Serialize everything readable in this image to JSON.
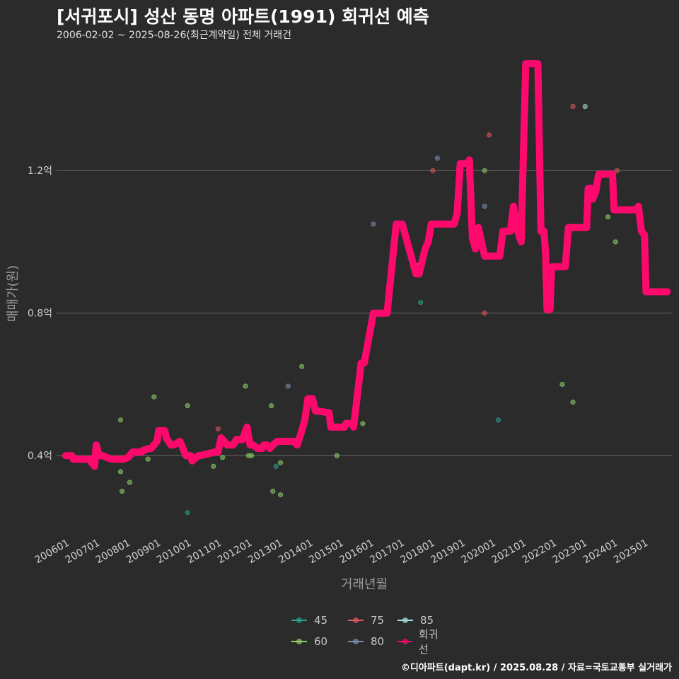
{
  "title": "[서귀포시] 성산 동명 아파트(1991) 회귀선 예측",
  "subtitle": "2006-02-02 ~ 2025-08-26(최근계약일) 전체 거래건",
  "caption": "©디아파트(dapt.kr) / 2025.08.28 / 자료=국토교통부 실거래가",
  "chart_data": {
    "type": "line",
    "xlabel": "거래년월",
    "ylabel": "매매가(원)",
    "x_range": [
      2005.7,
      2025.9
    ],
    "y_range": [
      0.17,
      1.54
    ],
    "x_ticks": [
      {
        "x": 2006.0,
        "label": "200601"
      },
      {
        "x": 2007.0,
        "label": "200701"
      },
      {
        "x": 2008.0,
        "label": "200801"
      },
      {
        "x": 2009.0,
        "label": "200901"
      },
      {
        "x": 2010.0,
        "label": "201001"
      },
      {
        "x": 2011.0,
        "label": "201101"
      },
      {
        "x": 2012.0,
        "label": "201201"
      },
      {
        "x": 2013.0,
        "label": "201301"
      },
      {
        "x": 2014.0,
        "label": "201401"
      },
      {
        "x": 2015.0,
        "label": "201501"
      },
      {
        "x": 2016.0,
        "label": "201601"
      },
      {
        "x": 2017.0,
        "label": "201701"
      },
      {
        "x": 2018.0,
        "label": "201801"
      },
      {
        "x": 2019.0,
        "label": "201901"
      },
      {
        "x": 2020.0,
        "label": "202001"
      },
      {
        "x": 2021.0,
        "label": "202101"
      },
      {
        "x": 2022.0,
        "label": "202201"
      },
      {
        "x": 2023.0,
        "label": "202301"
      },
      {
        "x": 2024.0,
        "label": "202401"
      },
      {
        "x": 2025.0,
        "label": "202501"
      }
    ],
    "y_ticks": [
      {
        "y": 0.4,
        "label": "0.4억"
      },
      {
        "y": 0.8,
        "label": "0.8억"
      },
      {
        "y": 1.2,
        "label": "1.2억"
      }
    ],
    "grid": true,
    "legend_position": "bottom",
    "legend": [
      {
        "name": "45",
        "color": "#2aa38c"
      },
      {
        "name": "75",
        "color": "#e05a5a"
      },
      {
        "name": "85",
        "color": "#a6e3e0"
      },
      {
        "name": "60",
        "color": "#8fd36a"
      },
      {
        "name": "80",
        "color": "#7a8fb5"
      },
      {
        "name": "회귀선",
        "color": "#ff0a6c"
      }
    ],
    "scatter": [
      {
        "group": "60",
        "x": 2007.8,
        "y": 0.5
      },
      {
        "group": "60",
        "x": 2007.8,
        "y": 0.355
      },
      {
        "group": "60",
        "x": 2007.85,
        "y": 0.3
      },
      {
        "group": "60",
        "x": 2008.1,
        "y": 0.325
      },
      {
        "group": "60",
        "x": 2008.7,
        "y": 0.39
      },
      {
        "group": "60",
        "x": 2008.9,
        "y": 0.565
      },
      {
        "group": "60",
        "x": 2010.0,
        "y": 0.54
      },
      {
        "group": "45",
        "x": 2010.0,
        "y": 0.24
      },
      {
        "group": "60",
        "x": 2010.85,
        "y": 0.37
      },
      {
        "group": "75",
        "x": 2011.0,
        "y": 0.475
      },
      {
        "group": "60",
        "x": 2011.15,
        "y": 0.395
      },
      {
        "group": "60",
        "x": 2011.9,
        "y": 0.595
      },
      {
        "group": "60",
        "x": 2012.0,
        "y": 0.4
      },
      {
        "group": "60",
        "x": 2012.1,
        "y": 0.4
      },
      {
        "group": "60",
        "x": 2012.75,
        "y": 0.54
      },
      {
        "group": "60",
        "x": 2012.8,
        "y": 0.3
      },
      {
        "group": "45",
        "x": 2012.9,
        "y": 0.37
      },
      {
        "group": "60",
        "x": 2013.05,
        "y": 0.38
      },
      {
        "group": "60",
        "x": 2013.05,
        "y": 0.29
      },
      {
        "group": "80",
        "x": 2013.3,
        "y": 0.595
      },
      {
        "group": "60",
        "x": 2013.75,
        "y": 0.65
      },
      {
        "group": "60",
        "x": 2014.9,
        "y": 0.4
      },
      {
        "group": "60",
        "x": 2015.75,
        "y": 0.49
      },
      {
        "group": "80",
        "x": 2016.1,
        "y": 1.05
      },
      {
        "group": "60",
        "x": 2017.6,
        "y": 0.935
      },
      {
        "group": "45",
        "x": 2017.65,
        "y": 0.83
      },
      {
        "group": "75",
        "x": 2018.05,
        "y": 1.2
      },
      {
        "group": "80",
        "x": 2018.2,
        "y": 1.235
      },
      {
        "group": "75",
        "x": 2019.75,
        "y": 0.8
      },
      {
        "group": "60",
        "x": 2019.75,
        "y": 1.2
      },
      {
        "group": "80",
        "x": 2019.75,
        "y": 1.1
      },
      {
        "group": "75",
        "x": 2019.9,
        "y": 1.3
      },
      {
        "group": "45",
        "x": 2020.2,
        "y": 0.5
      },
      {
        "group": "60",
        "x": 2022.3,
        "y": 0.6
      },
      {
        "group": "60",
        "x": 2022.65,
        "y": 0.55
      },
      {
        "group": "75",
        "x": 2022.65,
        "y": 1.38
      },
      {
        "group": "85",
        "x": 2023.05,
        "y": 1.38
      },
      {
        "group": "60",
        "x": 2023.8,
        "y": 1.07
      },
      {
        "group": "60",
        "x": 2024.05,
        "y": 1.0
      },
      {
        "group": "75",
        "x": 2024.1,
        "y": 1.2
      }
    ],
    "series": [
      {
        "name": "회귀선",
        "x": [
          2006.0,
          2006.2,
          2006.25,
          2006.8,
          2006.85,
          2006.95,
          2007.0,
          2007.1,
          2007.2,
          2007.5,
          2007.55,
          2007.9,
          2008.05,
          2008.1,
          2008.2,
          2008.5,
          2008.55,
          2008.75,
          2008.8,
          2009.0,
          2009.05,
          2009.25,
          2009.3,
          2009.45,
          2009.55,
          2009.75,
          2009.85,
          2009.95,
          2010.1,
          2010.15,
          2010.35,
          2010.4,
          2010.9,
          2011.0,
          2011.1,
          2011.2,
          2011.3,
          2011.5,
          2011.6,
          2011.8,
          2011.95,
          2012.05,
          2012.15,
          2012.3,
          2012.45,
          2012.5,
          2012.6,
          2012.7,
          2012.8,
          2012.95,
          2013.1,
          2013.5,
          2013.6,
          2013.75,
          2013.85,
          2013.95,
          2014.1,
          2014.2,
          2014.3,
          2014.65,
          2014.7,
          2014.95,
          2015.0,
          2015.15,
          2015.2,
          2015.35,
          2015.4,
          2015.45,
          2015.7,
          2015.8,
          2016.1,
          2016.5,
          2016.55,
          2016.85,
          2016.95,
          2017.05,
          2017.5,
          2017.6,
          2017.8,
          2017.9,
          2018.0,
          2018.45,
          2018.55,
          2018.65,
          2018.75,
          2018.85,
          2018.95,
          2019.05,
          2019.2,
          2019.25,
          2019.35,
          2019.45,
          2019.55,
          2019.75,
          2020.15,
          2020.25,
          2020.35,
          2020.6,
          2020.7,
          2020.8,
          2020.95,
          2021.1,
          2021.15,
          2021.5,
          2021.6,
          2021.7,
          2021.75,
          2021.8,
          2021.9,
          2021.95,
          2022.05,
          2022.4,
          2022.5,
          2022.6,
          2022.75,
          2023.05,
          2023.1,
          2023.15,
          2023.25,
          2023.3,
          2023.4,
          2023.45,
          2023.5,
          2023.6,
          2023.95,
          2024.0,
          2024.4,
          2024.6,
          2024.75,
          2024.8,
          2024.9,
          2025.0,
          2025.05,
          2025.15,
          2025.75
        ],
        "y": [
          0.4,
          0.4,
          0.39,
          0.39,
          0.38,
          0.37,
          0.43,
          0.4,
          0.4,
          0.39,
          0.39,
          0.39,
          0.395,
          0.4,
          0.41,
          0.41,
          0.415,
          0.42,
          0.42,
          0.44,
          0.47,
          0.47,
          0.45,
          0.43,
          0.43,
          0.44,
          0.42,
          0.4,
          0.4,
          0.385,
          0.4,
          0.4,
          0.41,
          0.41,
          0.45,
          0.44,
          0.43,
          0.43,
          0.445,
          0.445,
          0.48,
          0.43,
          0.43,
          0.42,
          0.42,
          0.43,
          0.43,
          0.42,
          0.43,
          0.44,
          0.44,
          0.44,
          0.43,
          0.47,
          0.5,
          0.56,
          0.56,
          0.525,
          0.525,
          0.52,
          0.48,
          0.48,
          0.48,
          0.48,
          0.49,
          0.49,
          0.49,
          0.48,
          0.66,
          0.66,
          0.8,
          0.8,
          0.8,
          1.05,
          1.05,
          1.05,
          0.91,
          0.91,
          0.98,
          1.0,
          1.05,
          1.05,
          1.05,
          1.05,
          1.05,
          1.08,
          1.22,
          1.22,
          1.22,
          1.23,
          1.01,
          0.98,
          1.04,
          0.96,
          0.96,
          0.96,
          1.03,
          1.03,
          1.1,
          1.04,
          1.0,
          1.5,
          1.5,
          1.5,
          1.03,
          1.03,
          0.97,
          0.81,
          0.81,
          0.93,
          0.93,
          0.93,
          1.04,
          1.04,
          1.04,
          1.04,
          1.04,
          1.15,
          1.15,
          1.12,
          1.14,
          1.17,
          1.19,
          1.19,
          1.19,
          1.09,
          1.09,
          1.09,
          1.09,
          1.1,
          1.03,
          1.02,
          0.86,
          0.86,
          0.86
        ]
      }
    ]
  }
}
